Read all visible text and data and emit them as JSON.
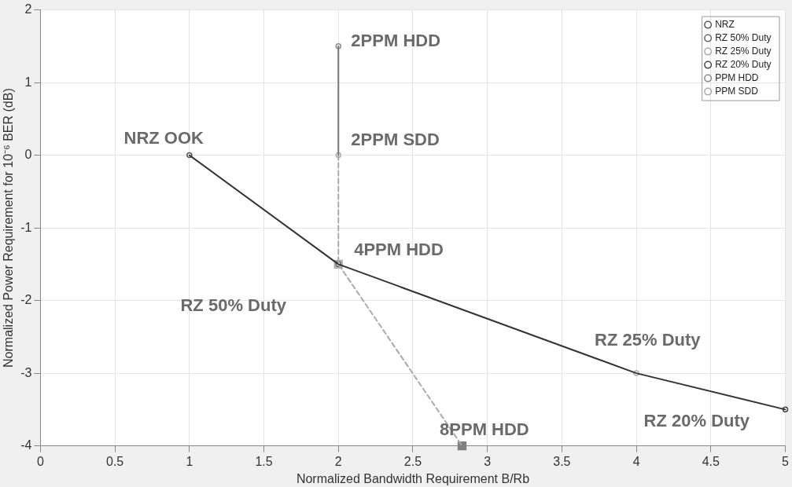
{
  "chart_data": {
    "type": "line",
    "xlabel": "Normalized Bandwidth Requirement B/Rb",
    "ylabel": "Normalized Power Requirement for 10⁻⁶ BER (dB)",
    "xlim": [
      0,
      5
    ],
    "xticks": [
      0,
      0.5,
      1,
      1.5,
      2,
      2.5,
      3,
      3.5,
      4,
      4.5,
      5
    ],
    "ylim": [
      -4,
      2
    ],
    "yticks": [
      -4,
      -3,
      -2,
      -1,
      0,
      1,
      2
    ],
    "grid": true,
    "legend": "top right",
    "series": [
      {
        "x": [
          1,
          2,
          4,
          5
        ],
        "values": [
          0,
          -1.5,
          -3,
          -3.5
        ],
        "color": "#333333",
        "marker": "none",
        "line_style": "solid"
      },
      {
        "x": [
          2,
          2
        ],
        "values": [
          0,
          1.5
        ],
        "color": "#777777",
        "marker": "none",
        "line_style": "solid"
      },
      {
        "x": [
          2,
          2,
          2.83
        ],
        "values": [
          0,
          -1.5,
          -4
        ],
        "color": "#aaaaaa",
        "marker": "none",
        "line_style": "dashed"
      },
      {
        "type": "scatter",
        "name": "NRZ",
        "x": [
          1
        ],
        "values": [
          0
        ],
        "color": "#555555",
        "marker": "circle"
      },
      {
        "type": "scatter",
        "name": "RZ 50% Duty",
        "x": [
          2
        ],
        "values": [
          -1.5
        ],
        "color": "#666666",
        "marker": "circle"
      },
      {
        "type": "scatter",
        "name": "RZ 25% Duty",
        "x": [
          4
        ],
        "values": [
          -3
        ],
        "color": "#aaaaaa",
        "marker": "circle"
      },
      {
        "type": "scatter",
        "name": "RZ 20% Duty",
        "x": [
          5
        ],
        "values": [
          -3.5
        ],
        "color": "#444444",
        "marker": "circle"
      },
      {
        "type": "scatter",
        "name": "PPM HDD",
        "x": [
          2
        ],
        "values": [
          1.5
        ],
        "color": "#888888",
        "marker": "circle"
      },
      {
        "type": "scatter",
        "name": "PPM SDD",
        "x": [
          2
        ],
        "values": [
          0
        ],
        "color": "#aaaaaa",
        "marker": "circle"
      },
      {
        "type": "scatter",
        "x": [
          2,
          2.83
        ],
        "values": [
          -1.5,
          -4
        ],
        "colors": [
          "#b0b0b0",
          "#808080"
        ],
        "marker": "square"
      }
    ],
    "annotations": [
      "NRZ OOK",
      "2PPM HDD",
      "2PPM SDD",
      "4PPM HDD",
      "RZ 50% Duty",
      "RZ 25% Duty",
      "RZ 20% Duty",
      "8PPM HDD"
    ]
  }
}
